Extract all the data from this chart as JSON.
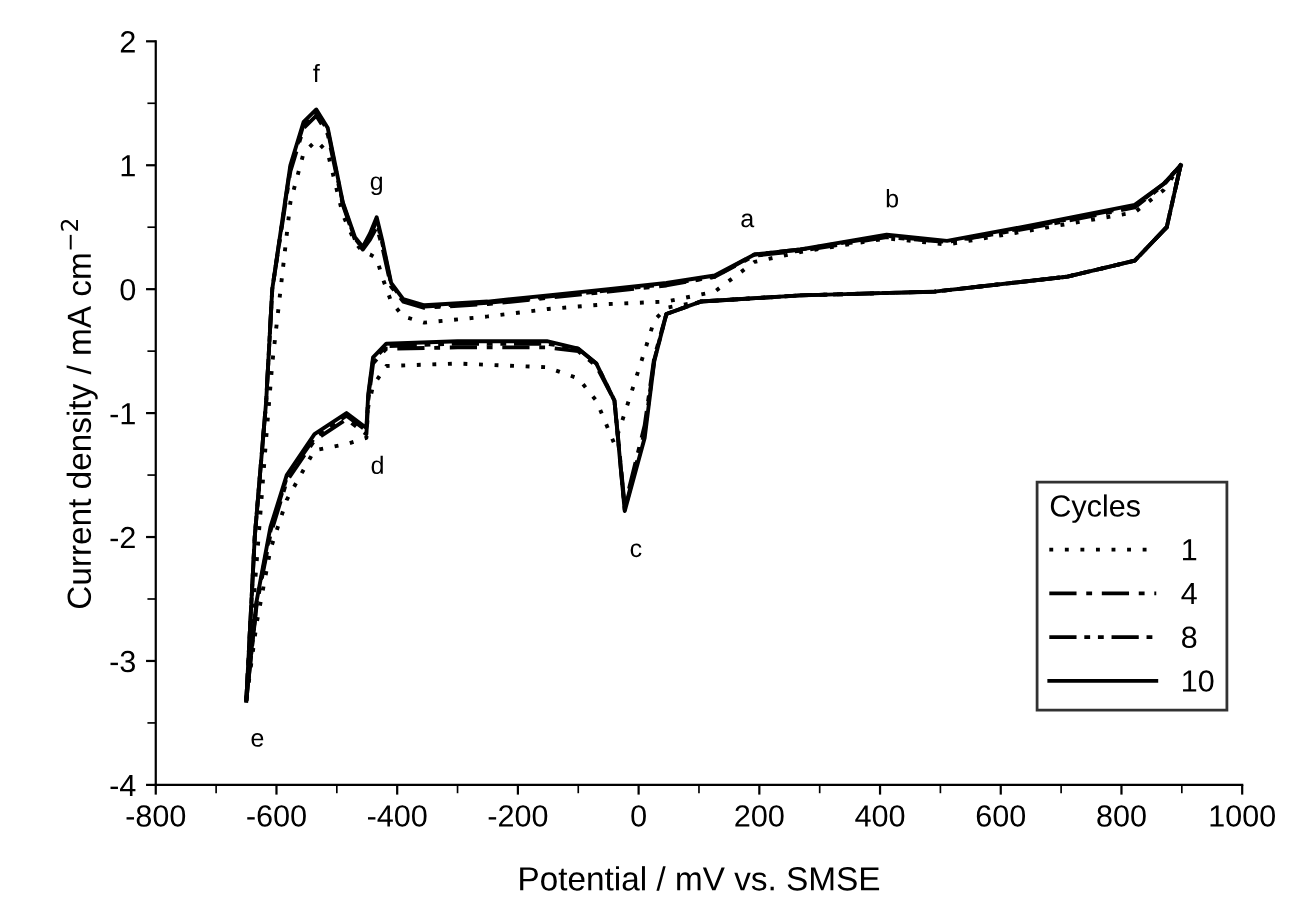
{
  "chart_data": {
    "type": "line",
    "xlabel": "Potential / mV vs. SMSE",
    "ylabel": "Current density / mA cm$^{−2}$",
    "legend_title": "Cycles",
    "xlim": [
      -800,
      1000
    ],
    "xticks": [
      -800,
      -600,
      -400,
      -200,
      0,
      200,
      400,
      600,
      800,
      1000
    ],
    "ylim": [
      -4,
      2
    ],
    "yticks": [
      -4,
      -3,
      -2,
      -1,
      0,
      1,
      2
    ],
    "grid": false,
    "legend": "bottom right",
    "marker": "none",
    "annotations": [
      {
        "text": "a",
        "x": 180,
        "y": 0.28
      },
      {
        "text": "b",
        "x": 420,
        "y": 0.44
      },
      {
        "text": "c",
        "x": -23,
        "y": -1.79
      },
      {
        "text": "d",
        "x": -451,
        "y": -1.12
      },
      {
        "text": "e",
        "x": -650,
        "y": -3.32
      },
      {
        "text": "f",
        "x": -534,
        "y": 1.45
      },
      {
        "text": "g",
        "x": -434,
        "y": 0.58
      }
    ],
    "series": [
      {
        "name": "1",
        "color": "#000000",
        "line_style": "dotted",
        "x": [
          -650,
          -636,
          -617,
          -607,
          -577,
          -555,
          -534,
          -515,
          -490,
          -470,
          -457,
          -445,
          -434,
          -425,
          -410,
          -390,
          -355,
          -250,
          -150,
          -50,
          46,
          126,
          192,
          268,
          411,
          511,
          656,
          822,
          870,
          898
        ],
        "values": [
          -3.32,
          -2.4,
          -1.2,
          -0.6,
          0.7,
          1.1,
          1.2,
          1.1,
          0.6,
          0.38,
          0.3,
          0.28,
          0.25,
          0.1,
          -0.1,
          -0.22,
          -0.27,
          -0.22,
          -0.16,
          -0.12,
          -0.1,
          -0.02,
          0.22,
          0.3,
          0.41,
          0.36,
          0.48,
          0.62,
          0.8,
          1.0
        ]
      },
      {
        "color": "#000000",
        "line_style": "dotted",
        "x": [
          898,
          875,
          822,
          709,
          490,
          268,
          103,
          46,
          26,
          10,
          -23,
          -40,
          -70,
          -100,
          -152,
          -300,
          -418,
          -440,
          -448,
          -451,
          -484,
          -537,
          -583,
          -610,
          -633,
          -650
        ],
        "values": [
          1.0,
          0.5,
          0.23,
          0.1,
          -0.02,
          -0.05,
          -0.1,
          -0.15,
          -0.25,
          -0.5,
          -1.0,
          -1.25,
          -0.9,
          -0.72,
          -0.63,
          -0.6,
          -0.62,
          -0.78,
          -0.95,
          -1.2,
          -1.25,
          -1.3,
          -1.7,
          -2.1,
          -2.7,
          -3.32
        ]
      },
      {
        "name": "4",
        "color": "#000000",
        "line_style": "dashdot",
        "x": [
          -650,
          -636,
          -617,
          -607,
          -577,
          -555,
          -534,
          -515,
          -490,
          -470,
          -457,
          -445,
          -434,
          -425,
          -410,
          -390,
          -355,
          -250,
          -150,
          -50,
          46,
          126,
          192,
          268,
          411,
          511,
          656,
          822,
          870,
          898
        ],
        "values": [
          -3.32,
          -2.0,
          -0.9,
          0.0,
          0.95,
          1.3,
          1.4,
          1.25,
          0.68,
          0.4,
          0.32,
          0.4,
          0.5,
          0.35,
          0.02,
          -0.1,
          -0.15,
          -0.12,
          -0.07,
          -0.02,
          0.03,
          0.1,
          0.27,
          0.31,
          0.42,
          0.38,
          0.5,
          0.66,
          0.84,
          1.0
        ]
      },
      {
        "color": "#000000",
        "line_style": "dashdot",
        "x": [
          898,
          875,
          822,
          709,
          490,
          268,
          103,
          46,
          26,
          10,
          -23,
          -40,
          -70,
          -100,
          -152,
          -300,
          -418,
          -440,
          -448,
          -451,
          -484,
          -537,
          -583,
          -610,
          -633,
          -650
        ],
        "values": [
          1.0,
          0.5,
          0.23,
          0.1,
          -0.02,
          -0.05,
          -0.1,
          -0.2,
          -0.55,
          -1.1,
          -1.75,
          -0.9,
          -0.62,
          -0.5,
          -0.47,
          -0.47,
          -0.48,
          -0.6,
          -0.9,
          -1.17,
          -1.05,
          -1.22,
          -1.55,
          -1.98,
          -2.55,
          -3.32
        ]
      },
      {
        "name": "8",
        "color": "#000000",
        "line_style": "dashdotdot",
        "x": [
          -650,
          -636,
          -617,
          -607,
          -577,
          -555,
          -534,
          -515,
          -490,
          -470,
          -457,
          -445,
          -434,
          -425,
          -410,
          -390,
          -355,
          -250,
          -150,
          -50,
          46,
          126,
          192,
          268,
          411,
          511,
          656,
          822,
          870,
          898
        ],
        "values": [
          -3.32,
          -2.0,
          -0.9,
          0.0,
          0.98,
          1.33,
          1.43,
          1.28,
          0.69,
          0.41,
          0.33,
          0.43,
          0.55,
          0.38,
          0.04,
          -0.09,
          -0.14,
          -0.11,
          -0.06,
          -0.01,
          0.04,
          0.1,
          0.28,
          0.32,
          0.43,
          0.38,
          0.51,
          0.67,
          0.85,
          1.0
        ]
      },
      {
        "color": "#000000",
        "line_style": "dashdotdot",
        "x": [
          898,
          875,
          822,
          709,
          490,
          268,
          103,
          46,
          26,
          10,
          -23,
          -40,
          -70,
          -100,
          -152,
          -300,
          -418,
          -440,
          -448,
          -451,
          -484,
          -537,
          -583,
          -610,
          -633,
          -650
        ],
        "values": [
          1.0,
          0.5,
          0.23,
          0.1,
          -0.02,
          -0.05,
          -0.1,
          -0.2,
          -0.57,
          -1.15,
          -1.78,
          -0.9,
          -0.6,
          -0.48,
          -0.44,
          -0.44,
          -0.46,
          -0.57,
          -0.87,
          -1.14,
          -1.02,
          -1.2,
          -1.52,
          -1.95,
          -2.53,
          -3.32
        ]
      },
      {
        "name": "10",
        "color": "#000000",
        "line_style": "solid",
        "x": [
          -650,
          -636,
          -617,
          -607,
          -577,
          -555,
          -534,
          -515,
          -490,
          -470,
          -457,
          -445,
          -434,
          -425,
          -410,
          -390,
          -355,
          -250,
          -150,
          -50,
          46,
          126,
          192,
          268,
          411,
          511,
          656,
          822,
          870,
          898
        ],
        "values": [
          -3.32,
          -2.0,
          -0.9,
          0.0,
          1.0,
          1.35,
          1.45,
          1.3,
          0.7,
          0.42,
          0.34,
          0.45,
          0.58,
          0.4,
          0.05,
          -0.08,
          -0.13,
          -0.1,
          -0.05,
          0.0,
          0.05,
          0.11,
          0.28,
          0.32,
          0.44,
          0.39,
          0.52,
          0.68,
          0.85,
          1.0
        ]
      },
      {
        "color": "#000000",
        "line_style": "solid",
        "x": [
          898,
          875,
          822,
          709,
          490,
          268,
          103,
          46,
          26,
          10,
          -23,
          -40,
          -70,
          -100,
          -152,
          -300,
          -418,
          -440,
          -448,
          -451,
          -484,
          -537,
          -583,
          -610,
          -633,
          -650
        ],
        "values": [
          1.0,
          0.5,
          0.23,
          0.1,
          -0.02,
          -0.05,
          -0.1,
          -0.2,
          -0.58,
          -1.2,
          -1.79,
          -0.9,
          -0.6,
          -0.48,
          -0.42,
          -0.42,
          -0.44,
          -0.55,
          -0.85,
          -1.12,
          -1.0,
          -1.17,
          -1.5,
          -1.92,
          -2.52,
          -3.32
        ]
      }
    ]
  }
}
